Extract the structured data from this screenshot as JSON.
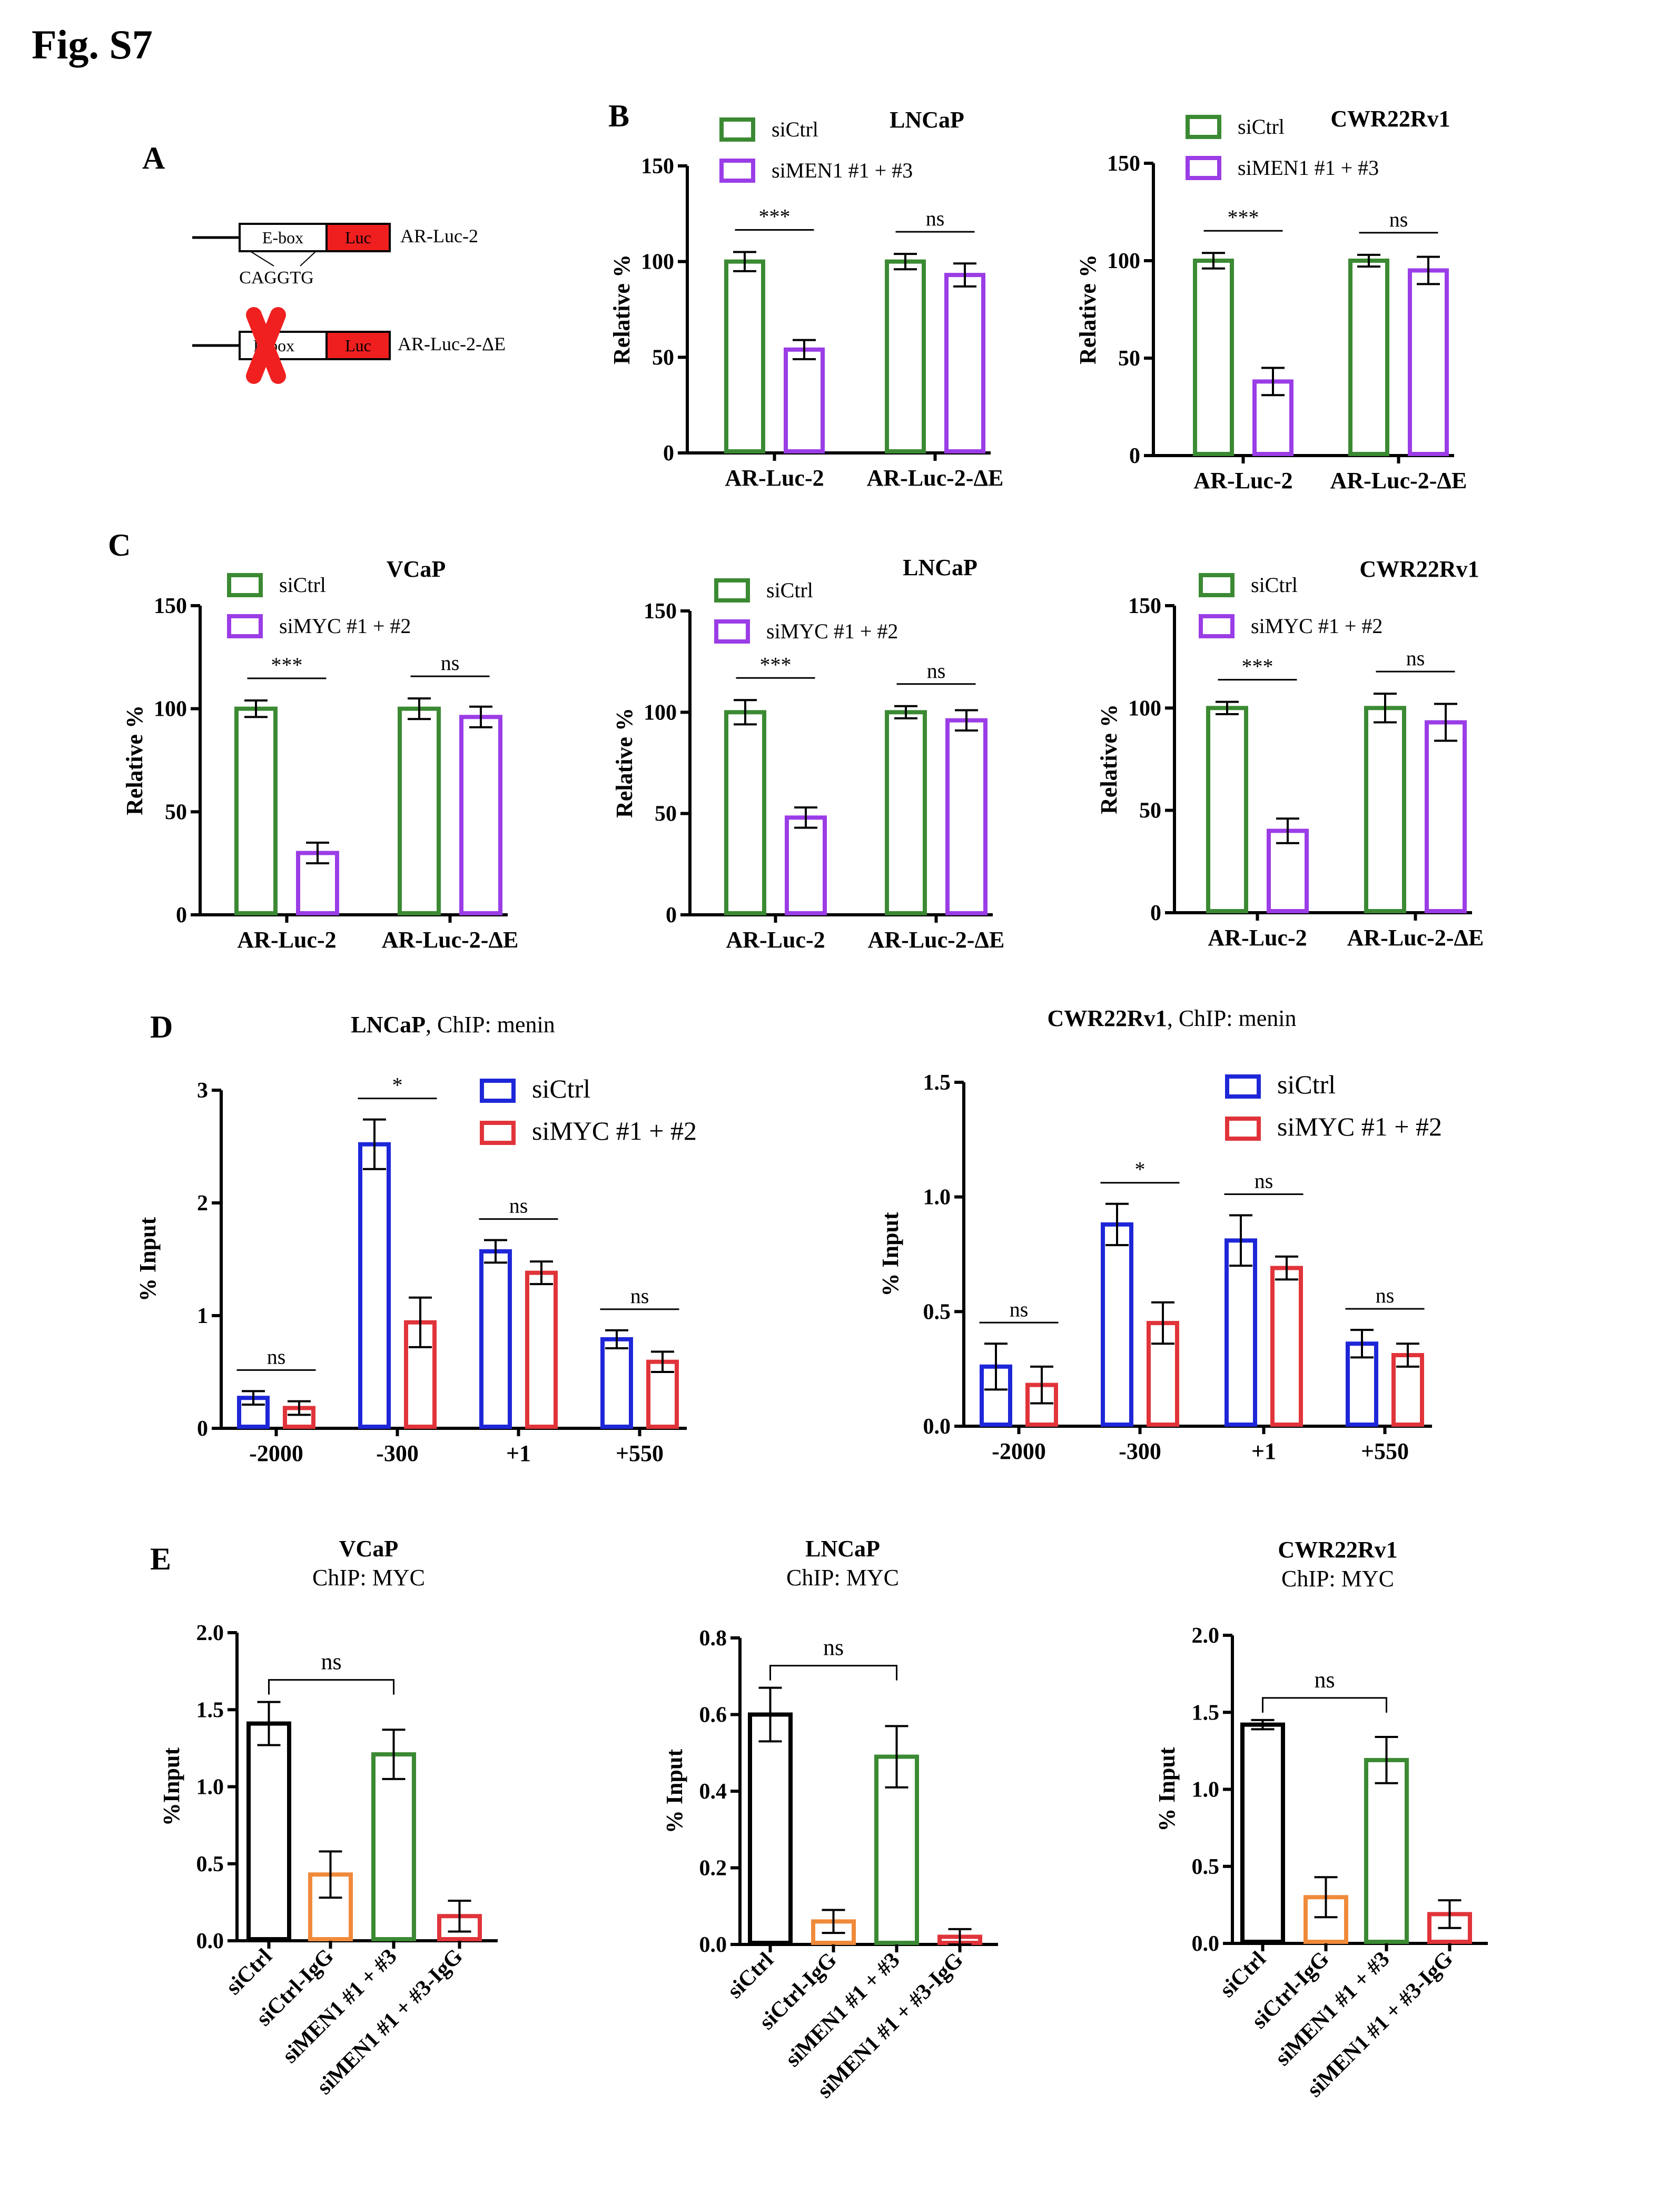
{
  "figure": {
    "title": "Fig. S7",
    "colors": {
      "green": "#3b8a33",
      "purple": "#9b3de6",
      "blue": "#1e27d8",
      "red": "#e0343a",
      "black": "#000000",
      "orange": "#ef8a3b"
    }
  },
  "panel_labels": {
    "A": "A",
    "B": "B",
    "C": "C",
    "D": "D",
    "E": "E"
  },
  "schematic": {
    "construct1": {
      "ebox": "E-box",
      "luc": "Luc",
      "name": "AR-Luc-2",
      "sequence": "CAGGTG"
    },
    "construct2": {
      "ebox": "E-box",
      "luc": "Luc",
      "name": "AR-Luc-2-ΔE"
    }
  },
  "chart_data": [
    {
      "id": "B1",
      "type": "bar",
      "title": "LNCaP",
      "ylabel": "Relative %",
      "xlabel": "",
      "categories": [
        "AR-Luc-2",
        "AR-Luc-2-ΔE"
      ],
      "ylim": [
        0,
        150
      ],
      "yticks": [
        "0",
        "50",
        "100",
        "150"
      ],
      "series": [
        {
          "name": "siCtrl",
          "color": "green",
          "values": [
            100,
            100
          ],
          "err": [
            5,
            4
          ]
        },
        {
          "name": "siMEN1 #1 + #3",
          "color": "purple",
          "values": [
            54,
            93
          ],
          "err": [
            5,
            6
          ]
        }
      ],
      "significance": [
        "***",
        "ns"
      ]
    },
    {
      "id": "B2",
      "type": "bar",
      "title": "CWR22Rv1",
      "ylabel": "Relative %",
      "xlabel": "",
      "categories": [
        "AR-Luc-2",
        "AR-Luc-2-ΔE"
      ],
      "ylim": [
        0,
        150
      ],
      "yticks": [
        "0",
        "50",
        "100",
        "150"
      ],
      "series": [
        {
          "name": "siCtrl",
          "color": "green",
          "values": [
            100,
            100
          ],
          "err": [
            4,
            3
          ]
        },
        {
          "name": "siMEN1 #1 + #3",
          "color": "purple",
          "values": [
            38,
            95
          ],
          "err": [
            7,
            7
          ]
        }
      ],
      "significance": [
        "***",
        "ns"
      ]
    },
    {
      "id": "C1",
      "type": "bar",
      "title": "VCaP",
      "ylabel": "Relative %",
      "xlabel": "",
      "categories": [
        "AR-Luc-2",
        "AR-Luc-2-ΔE"
      ],
      "ylim": [
        0,
        150
      ],
      "yticks": [
        "0",
        "50",
        "100",
        "150"
      ],
      "series": [
        {
          "name": "siCtrl",
          "color": "green",
          "values": [
            100,
            100
          ],
          "err": [
            4,
            5
          ]
        },
        {
          "name": "siMYC #1 + #2",
          "color": "purple",
          "values": [
            30,
            96
          ],
          "err": [
            5,
            5
          ]
        }
      ],
      "significance": [
        "***",
        "ns"
      ]
    },
    {
      "id": "C2",
      "type": "bar",
      "title": "LNCaP",
      "ylabel": "Relative %",
      "xlabel": "",
      "categories": [
        "AR-Luc-2",
        "AR-Luc-2-ΔE"
      ],
      "ylim": [
        0,
        150
      ],
      "yticks": [
        "0",
        "50",
        "100",
        "150"
      ],
      "series": [
        {
          "name": "siCtrl",
          "color": "green",
          "values": [
            100,
            100
          ],
          "err": [
            6,
            3
          ]
        },
        {
          "name": "siMYC #1 + #2",
          "color": "purple",
          "values": [
            48,
            96
          ],
          "err": [
            5,
            5
          ]
        }
      ],
      "significance": [
        "***",
        "ns"
      ]
    },
    {
      "id": "C3",
      "type": "bar",
      "title": "CWR22Rv1",
      "ylabel": "Relative %",
      "xlabel": "",
      "categories": [
        "AR-Luc-2",
        "AR-Luc-2-ΔE"
      ],
      "ylim": [
        0,
        150
      ],
      "yticks": [
        "0",
        "50",
        "100",
        "150"
      ],
      "series": [
        {
          "name": "siCtrl",
          "color": "green",
          "values": [
            100,
            100
          ],
          "err": [
            3,
            7
          ]
        },
        {
          "name": "siMYC #1 + #2",
          "color": "purple",
          "values": [
            40,
            93
          ],
          "err": [
            6,
            9
          ]
        }
      ],
      "significance": [
        "***",
        "ns"
      ]
    },
    {
      "id": "D1",
      "type": "bar",
      "title_bold": "LNCaP",
      "title_rest": ", ChIP: menin",
      "ylabel": "% Input",
      "xlabel": "",
      "categories": [
        "-2000",
        "-300",
        "+1",
        "+550"
      ],
      "ylim": [
        0,
        3
      ],
      "yticks": [
        "0",
        "1",
        "2",
        "3"
      ],
      "series": [
        {
          "name": "siCtrl",
          "color": "blue",
          "values": [
            0.27,
            2.52,
            1.57,
            0.79
          ],
          "err": [
            0.06,
            0.22,
            0.1,
            0.08
          ]
        },
        {
          "name": "siMYC #1 + #2",
          "color": "red",
          "values": [
            0.18,
            0.94,
            1.38,
            0.59
          ],
          "err": [
            0.06,
            0.22,
            0.1,
            0.09
          ]
        }
      ],
      "significance": [
        "ns",
        "*",
        "ns",
        "ns"
      ]
    },
    {
      "id": "D2",
      "type": "bar",
      "title_bold": "CWR22Rv1",
      "title_rest": ", ChIP: menin",
      "ylabel": "% Input",
      "xlabel": "",
      "categories": [
        "-2000",
        "-300",
        "+1",
        "+550"
      ],
      "ylim": [
        0,
        1.5
      ],
      "yticks": [
        "0.0",
        "0.5",
        "1.0",
        "1.5"
      ],
      "series": [
        {
          "name": "siCtrl",
          "color": "blue",
          "values": [
            0.26,
            0.88,
            0.81,
            0.36
          ],
          "err": [
            0.1,
            0.09,
            0.11,
            0.06
          ]
        },
        {
          "name": "siMYC #1 + #2",
          "color": "red",
          "values": [
            0.18,
            0.45,
            0.69,
            0.31
          ],
          "err": [
            0.08,
            0.09,
            0.05,
            0.05
          ]
        }
      ],
      "significance": [
        "ns",
        "*",
        "ns",
        "ns"
      ]
    },
    {
      "id": "E1",
      "type": "bar",
      "title": "VCaP",
      "subtitle": "ChIP: MYC",
      "ylabel": "%Input",
      "xlabel": "",
      "categories": [
        "siCtrl",
        "siCtrl-IgG",
        "siMEN1 #1 + #3",
        "siMEN1 #1 + #3-IgG"
      ],
      "ylim": [
        0,
        2
      ],
      "yticks": [
        "0.0",
        "0.5",
        "1.0",
        "1.5",
        "2.0"
      ],
      "colors": [
        "black",
        "orange",
        "green",
        "red"
      ],
      "values": [
        1.41,
        0.43,
        1.21,
        0.16
      ],
      "err": [
        0.14,
        0.15,
        0.16,
        0.1
      ],
      "bracket": "ns"
    },
    {
      "id": "E2",
      "type": "bar",
      "title": "LNCaP",
      "subtitle": "ChIP: MYC",
      "ylabel": "% Input",
      "xlabel": "",
      "categories": [
        "siCtrl",
        "siCtrl-IgG",
        "siMEN1 #1 + #3",
        "siMEN1 #1 + #3-IgG"
      ],
      "ylim": [
        0,
        0.8
      ],
      "yticks": [
        "0.0",
        "0.2",
        "0.4",
        "0.6",
        "0.8"
      ],
      "colors": [
        "black",
        "orange",
        "green",
        "red"
      ],
      "values": [
        0.6,
        0.06,
        0.49,
        0.02
      ],
      "err": [
        0.07,
        0.03,
        0.08,
        0.02
      ],
      "bracket": "ns"
    },
    {
      "id": "E3",
      "type": "bar",
      "title": "CWR22Rv1",
      "subtitle": "ChIP: MYC",
      "ylabel": "% Input",
      "xlabel": "",
      "categories": [
        "siCtrl",
        "siCtrl-IgG",
        "siMEN1 #1 + #3",
        "siMEN1 #1 + #3-IgG"
      ],
      "ylim": [
        0,
        2
      ],
      "yticks": [
        "0.0",
        "0.5",
        "1.0",
        "1.5",
        "2.0"
      ],
      "colors": [
        "black",
        "orange",
        "green",
        "red"
      ],
      "values": [
        1.42,
        0.3,
        1.19,
        0.19
      ],
      "err": [
        0.03,
        0.13,
        0.15,
        0.09
      ],
      "bracket": "ns"
    }
  ]
}
